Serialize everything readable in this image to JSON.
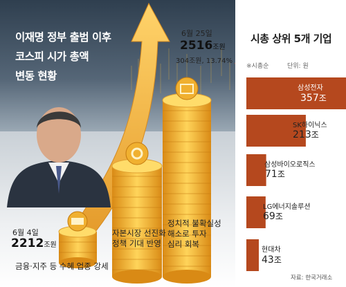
{
  "headline": {
    "line1": "이재명 정부 출범 이후",
    "line2": "코스피 시가 총액",
    "line3": "변동 현황"
  },
  "points": [
    {
      "date": "6월 4일",
      "value": "2212",
      "unit": "조원"
    },
    {
      "date": "",
      "value": "",
      "unit": ""
    },
    {
      "date": "6월 25일",
      "value": "2516",
      "unit": "조원",
      "change": "304조원, 13.74%"
    }
  ],
  "notes": [
    "금융·지주 등 수혜 업종 강세",
    "자본시장 선진화",
    "정책 기대 반영",
    "정치적 불확실성",
    "해소로 투자",
    "심리 회복"
  ],
  "top5": {
    "title": "시총 상위 5개 기업",
    "sort_note": "※시총순",
    "unit_note": "단위: 원",
    "suffix": "조",
    "source": "자료: 한국거래소",
    "bar_color": "#b5481e"
  },
  "chart_data": {
    "type": "bar",
    "orientation": "horizontal",
    "title": "시총 상위 5개 기업",
    "categories": [
      "삼성전자",
      "SK하이닉스",
      "삼성바이오로직스",
      "LG에너지솔루션",
      "현대차"
    ],
    "values": [
      357,
      213,
      71,
      69,
      43
    ]
  }
}
